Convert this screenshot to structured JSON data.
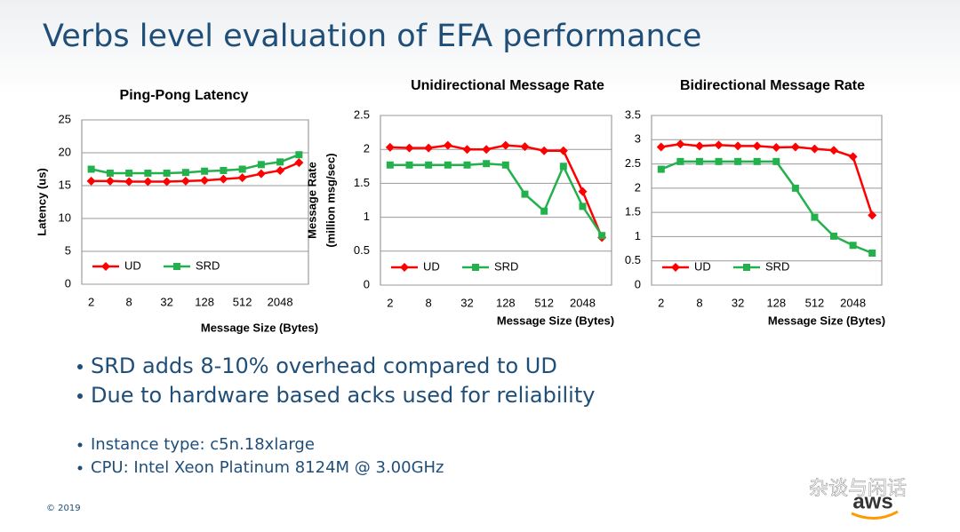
{
  "slide": {
    "title": "Verbs level evaluation of EFA performance",
    "bullets": [
      "SRD adds 8-10% overhead compared to UD",
      "Due to hardware based acks used for reliability"
    ],
    "details": [
      "Instance type: c5n.18xlarge",
      "CPU: Intel Xeon Platinum 8124M @ 3.00GHz"
    ],
    "footer": "© 2019",
    "watermark": "杂谈与闲话",
    "logo": "aws"
  },
  "chart_data": [
    {
      "type": "line",
      "title": "Ping-Pong Latency",
      "xlabel": "Message Size (Bytes)",
      "ylabel": [
        "Latency  (us)"
      ],
      "categories": [
        2,
        null,
        8,
        null,
        32,
        null,
        128,
        null,
        512,
        null,
        2048,
        null
      ],
      "series": [
        {
          "name": "UD",
          "color": "#ff0000",
          "marker": "diamond",
          "values": [
            15.7,
            15.7,
            15.6,
            15.6,
            15.6,
            15.7,
            15.8,
            16.0,
            16.2,
            16.8,
            17.3,
            18.5
          ]
        },
        {
          "name": "SRD",
          "color": "#22b14c",
          "marker": "square",
          "values": [
            17.5,
            16.9,
            16.9,
            16.9,
            16.9,
            17.0,
            17.2,
            17.3,
            17.5,
            18.2,
            18.6,
            19.7
          ]
        }
      ],
      "ylim": [
        0,
        25
      ],
      "yticks": [
        0,
        5,
        10,
        15,
        20,
        25
      ],
      "grid": true,
      "legend": "lower left"
    },
    {
      "type": "line",
      "title": "Unidirectional Message Rate",
      "xlabel": "Message Size (Bytes)",
      "ylabel": [
        "Message Rate",
        "(million msg/sec)"
      ],
      "categories": [
        2,
        null,
        8,
        null,
        32,
        null,
        128,
        null,
        512,
        null,
        2048,
        null
      ],
      "series": [
        {
          "name": "UD",
          "color": "#ff0000",
          "marker": "diamond",
          "values": [
            2.03,
            2.02,
            2.02,
            2.06,
            2.0,
            2.0,
            2.06,
            2.04,
            1.98,
            1.98,
            1.38,
            0.7
          ]
        },
        {
          "name": "SRD",
          "color": "#22b14c",
          "marker": "square",
          "values": [
            1.77,
            1.77,
            1.77,
            1.77,
            1.77,
            1.79,
            1.77,
            1.34,
            1.09,
            1.75,
            1.16,
            0.73
          ]
        }
      ],
      "ylim": [
        0,
        2.5
      ],
      "yticks": [
        0,
        0.5,
        1,
        1.5,
        2,
        2.5
      ],
      "grid": true,
      "legend": "lower left"
    },
    {
      "type": "line",
      "title": "Bidirectional Message Rate",
      "xlabel": "Message Size (Bytes)",
      "ylabel": [],
      "categories": [
        2,
        null,
        8,
        null,
        32,
        null,
        128,
        null,
        512,
        null,
        2048,
        null
      ],
      "series": [
        {
          "name": "UD",
          "color": "#ff0000",
          "marker": "diamond",
          "values": [
            2.85,
            2.91,
            2.87,
            2.89,
            2.87,
            2.87,
            2.84,
            2.85,
            2.81,
            2.78,
            2.65,
            1.44
          ]
        },
        {
          "name": "SRD",
          "color": "#22b14c",
          "marker": "square",
          "values": [
            2.39,
            2.55,
            2.55,
            2.55,
            2.55,
            2.55,
            2.55,
            2.0,
            1.4,
            1.01,
            0.82,
            0.66
          ]
        }
      ],
      "ylim": [
        0,
        3.5
      ],
      "yticks": [
        0,
        0.5,
        1,
        1.5,
        2,
        2.5,
        3,
        3.5
      ],
      "grid": true,
      "legend": "lower left"
    }
  ]
}
